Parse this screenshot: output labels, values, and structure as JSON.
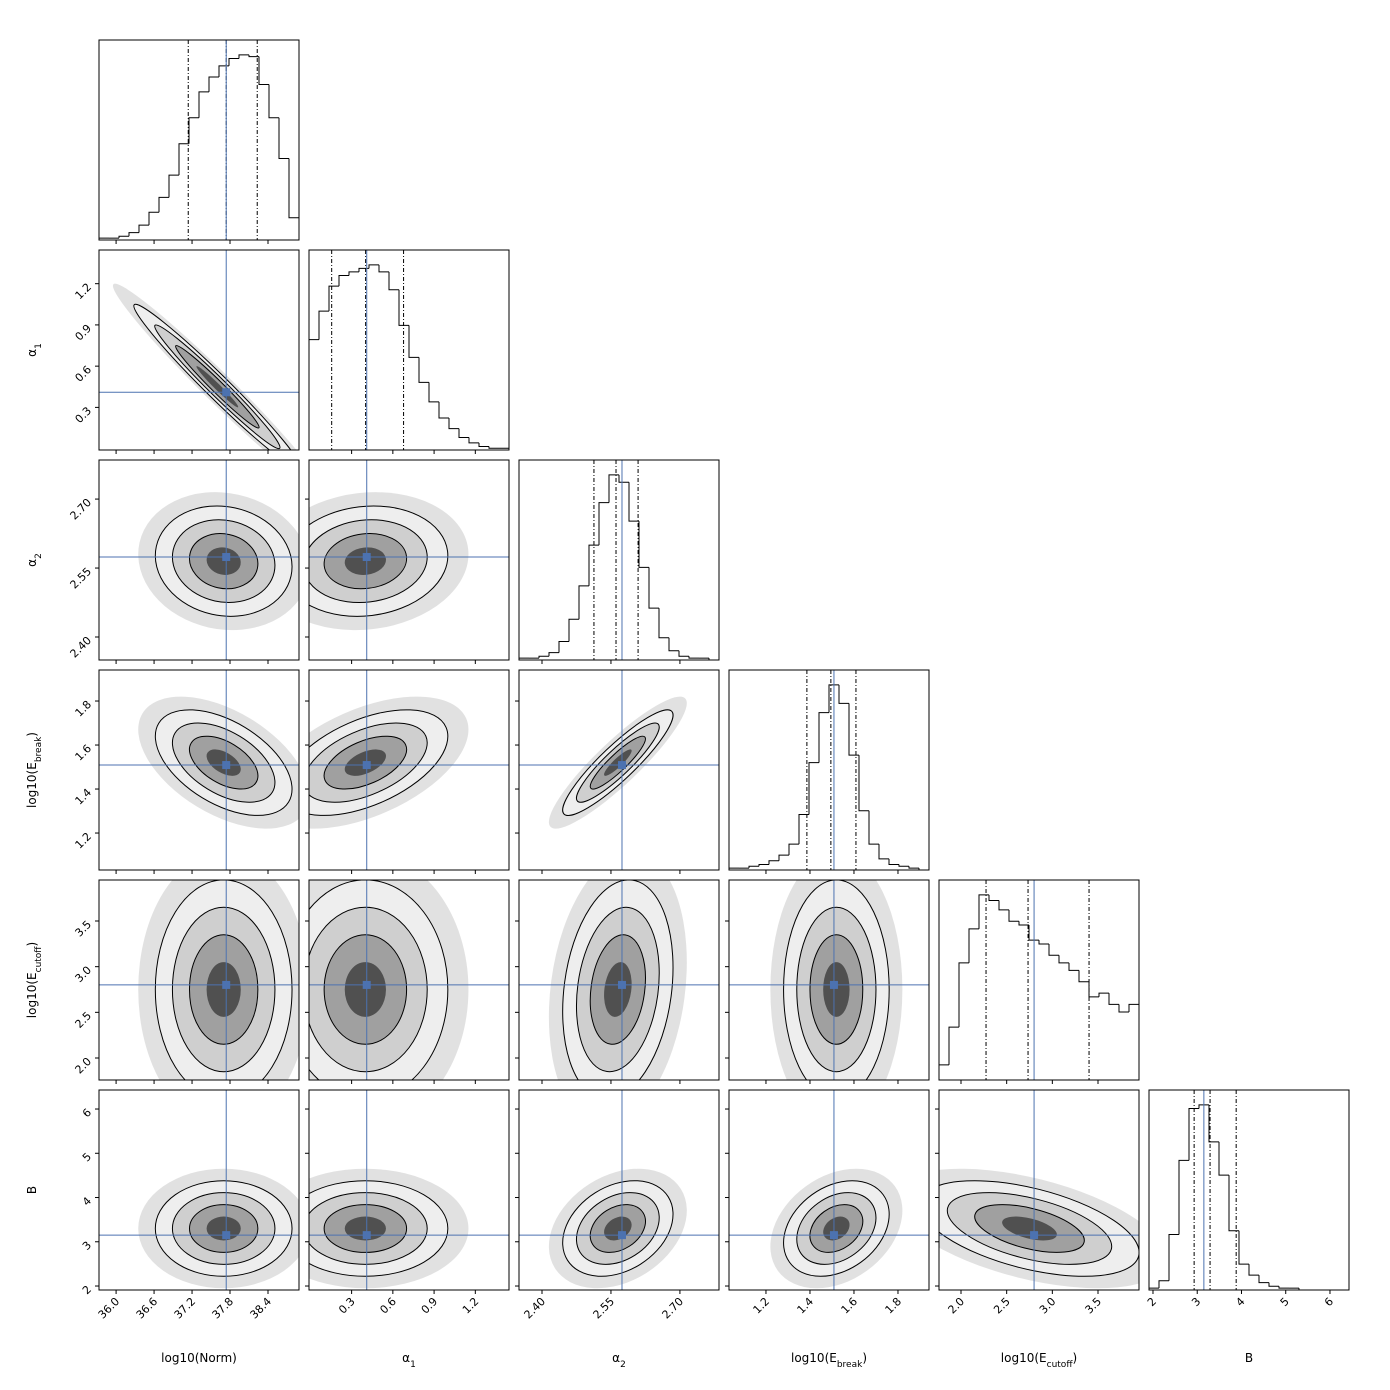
{
  "chart_data": {
    "type": "corner",
    "color": "#000000",
    "truth_color": "#4c72b0",
    "parameters": [
      {
        "label": [
          {
            "text": "log10(Norm)"
          }
        ],
        "lim": [
          35.73,
          38.89
        ],
        "ticks": [
          {
            "value": 36,
            "label": "36.0"
          },
          36.6,
          37.2,
          37.8,
          38.4
        ],
        "truth": 37.74,
        "quantiles": [
          37.14,
          37.74,
          38.23
        ],
        "hist": [
          1,
          1,
          2,
          4,
          8,
          15,
          23,
          35,
          52,
          66,
          80,
          88,
          94,
          98,
          100,
          99,
          84,
          66,
          44,
          12
        ],
        "pairs": []
      },
      {
        "label": [
          {
            "text": "α"
          },
          {
            "text": "1",
            "sub": true
          }
        ],
        "lim": [
          -0.01,
          1.445
        ],
        "ticks": [
          0.3,
          0.6,
          0.9,
          1.2
        ],
        "truth": 0.41,
        "quantiles": [
          0.155,
          0.402,
          0.678
        ],
        "hist": [
          62,
          78,
          92,
          98,
          100,
          102,
          104,
          100,
          90,
          70,
          52,
          38,
          27,
          18,
          12,
          7,
          4,
          2,
          1,
          1
        ],
        "pairs": [
          {
            "center": [
              37.6,
              0.45
            ],
            "sigma": [
              0.55,
              0.25
            ],
            "rho": -0.98
          }
        ]
      },
      {
        "label": [
          {
            "text": "α"
          },
          {
            "text": "2",
            "sub": true
          }
        ],
        "lim": [
          2.35,
          2.785
        ],
        "ticks": [
          {
            "value": 2.4,
            "label": "2.40"
          },
          2.55,
          {
            "value": 2.7,
            "label": "2.70"
          }
        ],
        "truth": 2.574,
        "quantiles": [
          2.513,
          2.561,
          2.609
        ],
        "hist": [
          1,
          1,
          2,
          4,
          10,
          22,
          40,
          62,
          85,
          100,
          96,
          75,
          50,
          28,
          12,
          5,
          2,
          1,
          1,
          0
        ],
        "pairs": [
          {
            "center": [
              37.7,
              2.565
            ],
            "sigma": [
              0.45,
              0.05
            ],
            "rho": -0.1
          },
          {
            "center": [
              0.4,
              2.565
            ],
            "sigma": [
              0.25,
              0.05
            ],
            "rho": 0.1
          }
        ]
      },
      {
        "label": [
          {
            "text": "log10(E"
          },
          {
            "text": "break",
            "sub": true
          },
          {
            "text": ")"
          }
        ],
        "lim": [
          1.032,
          1.941
        ],
        "ticks": [
          1.2,
          1.4,
          1.6,
          1.8
        ],
        "truth": 1.509,
        "quantiles": [
          1.386,
          1.495,
          1.609
        ],
        "hist": [
          1,
          1,
          2,
          3,
          5,
          8,
          14,
          30,
          58,
          85,
          100,
          90,
          62,
          32,
          14,
          6,
          3,
          2,
          1,
          0
        ],
        "pairs": [
          {
            "center": [
              37.7,
              1.52
            ],
            "sigma": [
              0.45,
              0.1
            ],
            "rho": -0.5
          },
          {
            "center": [
              0.4,
              1.52
            ],
            "sigma": [
              0.25,
              0.1
            ],
            "rho": 0.5
          },
          {
            "center": [
              2.565,
              1.52
            ],
            "sigma": [
              0.05,
              0.1
            ],
            "rho": 0.9
          }
        ]
      },
      {
        "label": [
          {
            "text": "log10(E"
          },
          {
            "text": "cutoff",
            "sub": true
          },
          {
            "text": ")"
          }
        ],
        "lim": [
          1.759,
          3.949
        ],
        "ticks": [
          {
            "value": 2,
            "label": "2.0"
          },
          2.5,
          {
            "value": 3,
            "label": "3.0"
          },
          3.5
        ],
        "truth": 2.8,
        "quantiles": [
          2.274,
          2.734,
          3.402
        ],
        "hist": [
          8,
          28,
          62,
          80,
          98,
          95,
          90,
          84,
          82,
          74,
          72,
          66,
          62,
          58,
          52,
          44,
          46,
          40,
          36,
          40
        ],
        "pairs": [
          {
            "center": [
              37.7,
              2.75
            ],
            "sigma": [
              0.45,
              0.5
            ],
            "rho": 0
          },
          {
            "center": [
              0.4,
              2.75
            ],
            "sigma": [
              0.25,
              0.5
            ],
            "rho": 0
          },
          {
            "center": [
              2.565,
              2.75
            ],
            "sigma": [
              0.05,
              0.5
            ],
            "rho": 0.2
          },
          {
            "center": [
              1.52,
              2.75
            ],
            "sigma": [
              0.1,
              0.5
            ],
            "rho": 0
          }
        ]
      },
      {
        "label": [
          {
            "text": "B"
          }
        ],
        "lim": [
          1.91,
          6.43
        ],
        "ticks": [
          2,
          3,
          4,
          5,
          6
        ],
        "truth": 3.15,
        "quantiles": [
          2.93,
          3.29,
          3.88
        ],
        "hist": [
          1,
          5,
          30,
          70,
          98,
          100,
          80,
          62,
          32,
          14,
          8,
          4,
          2,
          1,
          1,
          0,
          0,
          0,
          0,
          0
        ],
        "pairs": [
          {
            "center": [
              37.7,
              3.3
            ],
            "sigma": [
              0.45,
              0.45
            ],
            "rho": 0
          },
          {
            "center": [
              0.4,
              3.3
            ],
            "sigma": [
              0.25,
              0.45
            ],
            "rho": 0
          },
          {
            "center": [
              2.565,
              3.3
            ],
            "sigma": [
              0.05,
              0.45
            ],
            "rho": 0.3
          },
          {
            "center": [
              1.52,
              3.3
            ],
            "sigma": [
              0.1,
              0.45
            ],
            "rho": 0.3
          },
          {
            "center": [
              2.75,
              3.3
            ],
            "sigma": [
              0.5,
              0.45
            ],
            "rho": -0.5
          }
        ]
      }
    ]
  }
}
